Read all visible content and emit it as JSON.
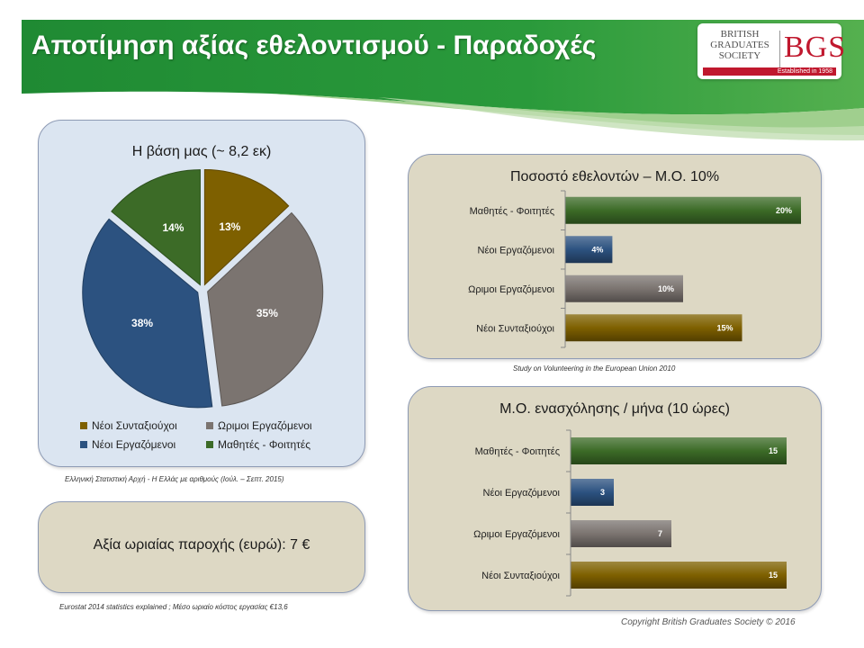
{
  "header": {
    "title": "Αποτίμηση αξίας εθελοντισμού - Παραδοχές",
    "logo_name_lines": [
      "BRITISH",
      "GRADUATES",
      "SOCIETY"
    ],
    "logo_mark": "BGS",
    "logo_established": "Established in 1958"
  },
  "colors": {
    "green": "#3c6b27",
    "blue": "#2c5280",
    "gray": "#7b7470",
    "gold": "#7e6000",
    "banner_dark": "#1f8a33",
    "banner_light": "#8fc77a"
  },
  "captions": {
    "pie_source": "Ελληνική Στατιστική Αρχή - Η Ελλάς με αριθμούς (Ιούλ. – Σεπτ. 2015)",
    "bar1_source": "Study on Volunteering in the European Union 2010",
    "rate_source": "Eurostat 2014 statistics explained ; Μέσο ωριαίο κόστος εργασίας €13,6"
  },
  "rate_panel": {
    "label": "Αξία ωριαίας παροχής (ευρώ): 7 €"
  },
  "copyright": "Copyright British  Graduates Society © 2016",
  "chart_data": [
    {
      "type": "pie",
      "title": "Η βάση  μας (~ 8,2 εκ)",
      "slices": [
        {
          "label": "Νέοι Συνταξιούχοι",
          "value": 13,
          "display": "13%",
          "color": "#7e6000"
        },
        {
          "label": "Ωριμοι Εργαζόμενοι",
          "value": 35,
          "display": "35%",
          "color": "#7b7470"
        },
        {
          "label": "Νέοι Εργαζόμενοι",
          "value": 38,
          "display": "38%",
          "color": "#2c5280"
        },
        {
          "label": "Μαθητές - Φοιτητές",
          "value": 14,
          "display": "14%",
          "color": "#3c6b27"
        }
      ],
      "legend_position": "bottom"
    },
    {
      "type": "bar",
      "orientation": "horizontal",
      "title": "Ποσοστό εθελοντών – Μ.Ο. 10%",
      "categories": [
        "Μαθητές - Φοιτητές",
        "Νέοι Εργαζόμενοι",
        "Ωριμοι Εργαζόμενοι",
        "Νέοι Συνταξιούχοι"
      ],
      "values": [
        20,
        4,
        10,
        15
      ],
      "display": [
        "20%",
        "4%",
        "10%",
        "15%"
      ],
      "colors": [
        "#3c6b27",
        "#2c5280",
        "#7b7470",
        "#7e6000"
      ],
      "xlim": [
        0,
        20
      ]
    },
    {
      "type": "bar",
      "orientation": "horizontal",
      "title": "Μ.Ο. ενασχόλησης / μήνα (10 ώρες)",
      "categories": [
        "Μαθητές - Φοιτητές",
        "Νέοι Εργαζόμενοι",
        "Ωριμοι Εργαζόμενοι",
        "Νέοι Συνταξιούχοι"
      ],
      "values": [
        15,
        3,
        7,
        15
      ],
      "display": [
        "15",
        "3",
        "7",
        "15"
      ],
      "colors": [
        "#3c6b27",
        "#2c5280",
        "#7b7470",
        "#7e6000"
      ],
      "xlim": [
        0,
        15
      ]
    }
  ]
}
